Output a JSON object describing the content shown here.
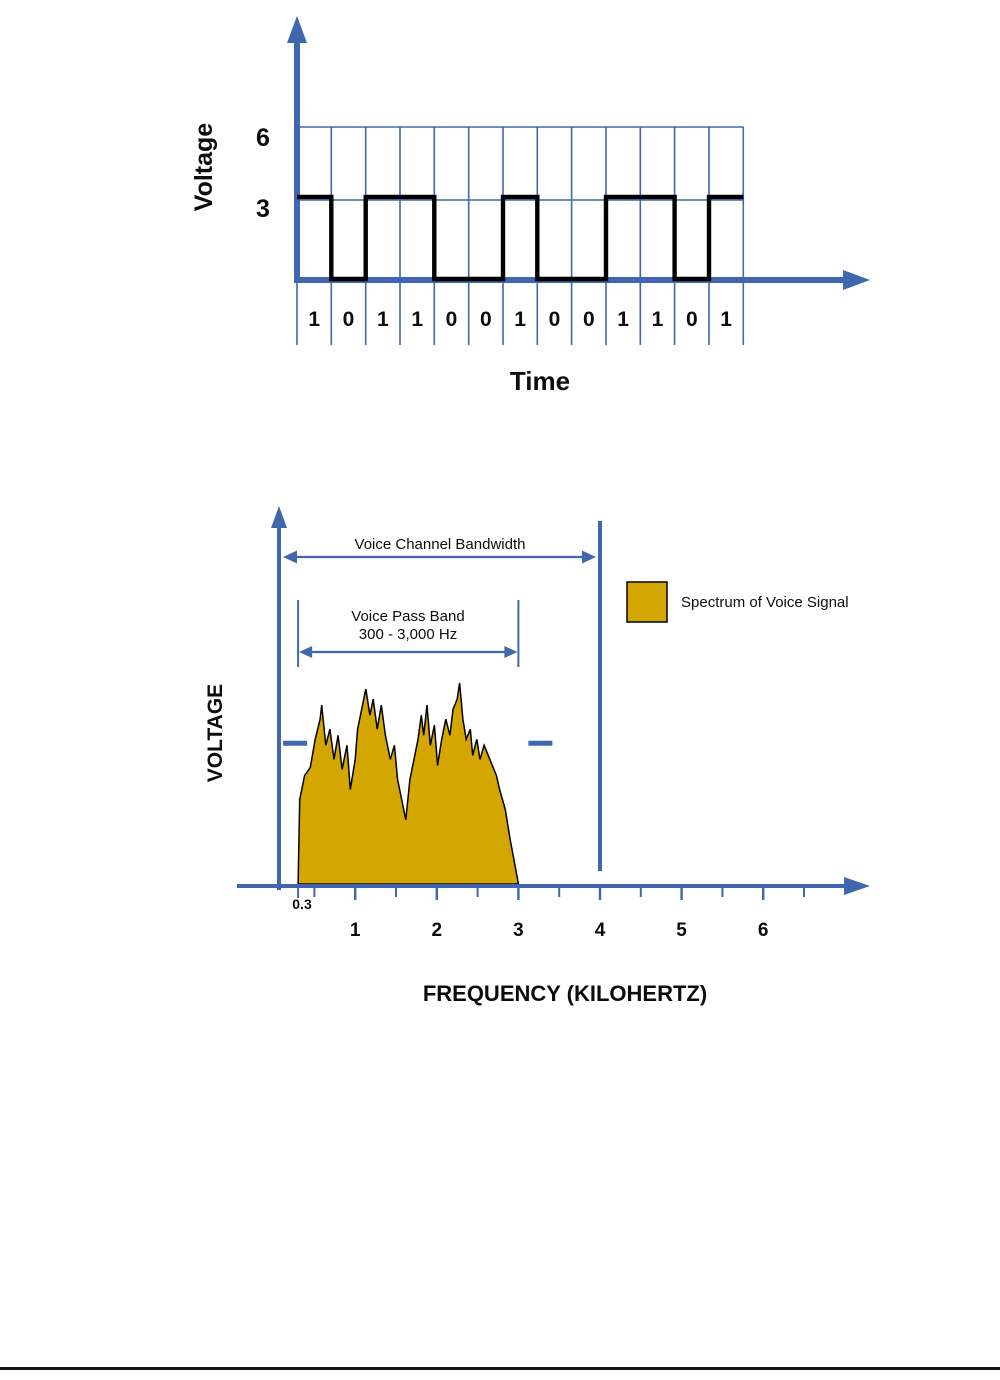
{
  "colors": {
    "axis_blue": "#4066ad",
    "spectrum_gold": "#d4a700",
    "ink": "#0d0d0d",
    "page_background": "#ffffff",
    "footer_rule": "#141414"
  },
  "chart_data": [
    {
      "type": "line",
      "name": "digital-signal-vs-time",
      "ylabel": "Voltage",
      "xlabel": "Time",
      "y_ticks": [
        "6",
        "3"
      ],
      "high_volts": 3,
      "low_volts": 0,
      "bits": [
        "1",
        "0",
        "1",
        "1",
        "0",
        "0",
        "1",
        "0",
        "0",
        "1",
        "1",
        "0",
        "1"
      ]
    },
    {
      "type": "area",
      "name": "voice-signal-spectrum",
      "ylabel": "VOLTAGE",
      "xlabel": "FREQUENCY (KILOHERTZ)",
      "x_first_tick": "0.3",
      "x_major_ticks": [
        "1",
        "2",
        "3",
        "4",
        "5",
        "6"
      ],
      "x_minor_ticks": [
        0.5,
        1.5,
        2.5,
        3.5,
        4.5,
        5.5,
        6.5
      ],
      "xlim_khz": [
        0,
        7
      ],
      "channel_bandwidth_khz": [
        0,
        4
      ],
      "pass_band_khz": [
        0.3,
        3
      ],
      "reference_level_amplitude": 0.7,
      "annotations": {
        "channel_bandwidth": "Voice Channel Bandwidth",
        "pass_band_line1": "Voice Pass Band",
        "pass_band_line2": "300 - 3,000 Hz"
      },
      "legend": {
        "label": "Spectrum of Voice Signal"
      },
      "spectrum_points": [
        [
          0.3,
          0.0
        ],
        [
          0.32,
          0.42
        ],
        [
          0.38,
          0.54
        ],
        [
          0.45,
          0.58
        ],
        [
          0.51,
          0.72
        ],
        [
          0.57,
          0.82
        ],
        [
          0.59,
          0.89
        ],
        [
          0.64,
          0.69
        ],
        [
          0.69,
          0.77
        ],
        [
          0.74,
          0.62
        ],
        [
          0.79,
          0.74
        ],
        [
          0.84,
          0.57
        ],
        [
          0.9,
          0.69
        ],
        [
          0.94,
          0.47
        ],
        [
          1.0,
          0.62
        ],
        [
          1.03,
          0.77
        ],
        [
          1.08,
          0.87
        ],
        [
          1.13,
          0.97
        ],
        [
          1.18,
          0.84
        ],
        [
          1.22,
          0.92
        ],
        [
          1.27,
          0.77
        ],
        [
          1.32,
          0.89
        ],
        [
          1.37,
          0.74
        ],
        [
          1.43,
          0.62
        ],
        [
          1.48,
          0.69
        ],
        [
          1.52,
          0.52
        ],
        [
          1.57,
          0.42
        ],
        [
          1.62,
          0.32
        ],
        [
          1.67,
          0.52
        ],
        [
          1.72,
          0.62
        ],
        [
          1.77,
          0.72
        ],
        [
          1.81,
          0.84
        ],
        [
          1.84,
          0.74
        ],
        [
          1.88,
          0.89
        ],
        [
          1.92,
          0.69
        ],
        [
          1.97,
          0.79
        ],
        [
          2.01,
          0.59
        ],
        [
          2.06,
          0.72
        ],
        [
          2.11,
          0.82
        ],
        [
          2.16,
          0.74
        ],
        [
          2.2,
          0.87
        ],
        [
          2.25,
          0.92
        ],
        [
          2.28,
          1.0
        ],
        [
          2.32,
          0.82
        ],
        [
          2.36,
          0.72
        ],
        [
          2.41,
          0.77
        ],
        [
          2.44,
          0.64
        ],
        [
          2.49,
          0.72
        ],
        [
          2.53,
          0.62
        ],
        [
          2.58,
          0.69
        ],
        [
          2.63,
          0.64
        ],
        [
          2.68,
          0.59
        ],
        [
          2.73,
          0.54
        ],
        [
          2.77,
          0.47
        ],
        [
          2.84,
          0.37
        ],
        [
          2.9,
          0.22
        ],
        [
          2.96,
          0.09
        ],
        [
          3.0,
          0.0
        ]
      ]
    }
  ]
}
